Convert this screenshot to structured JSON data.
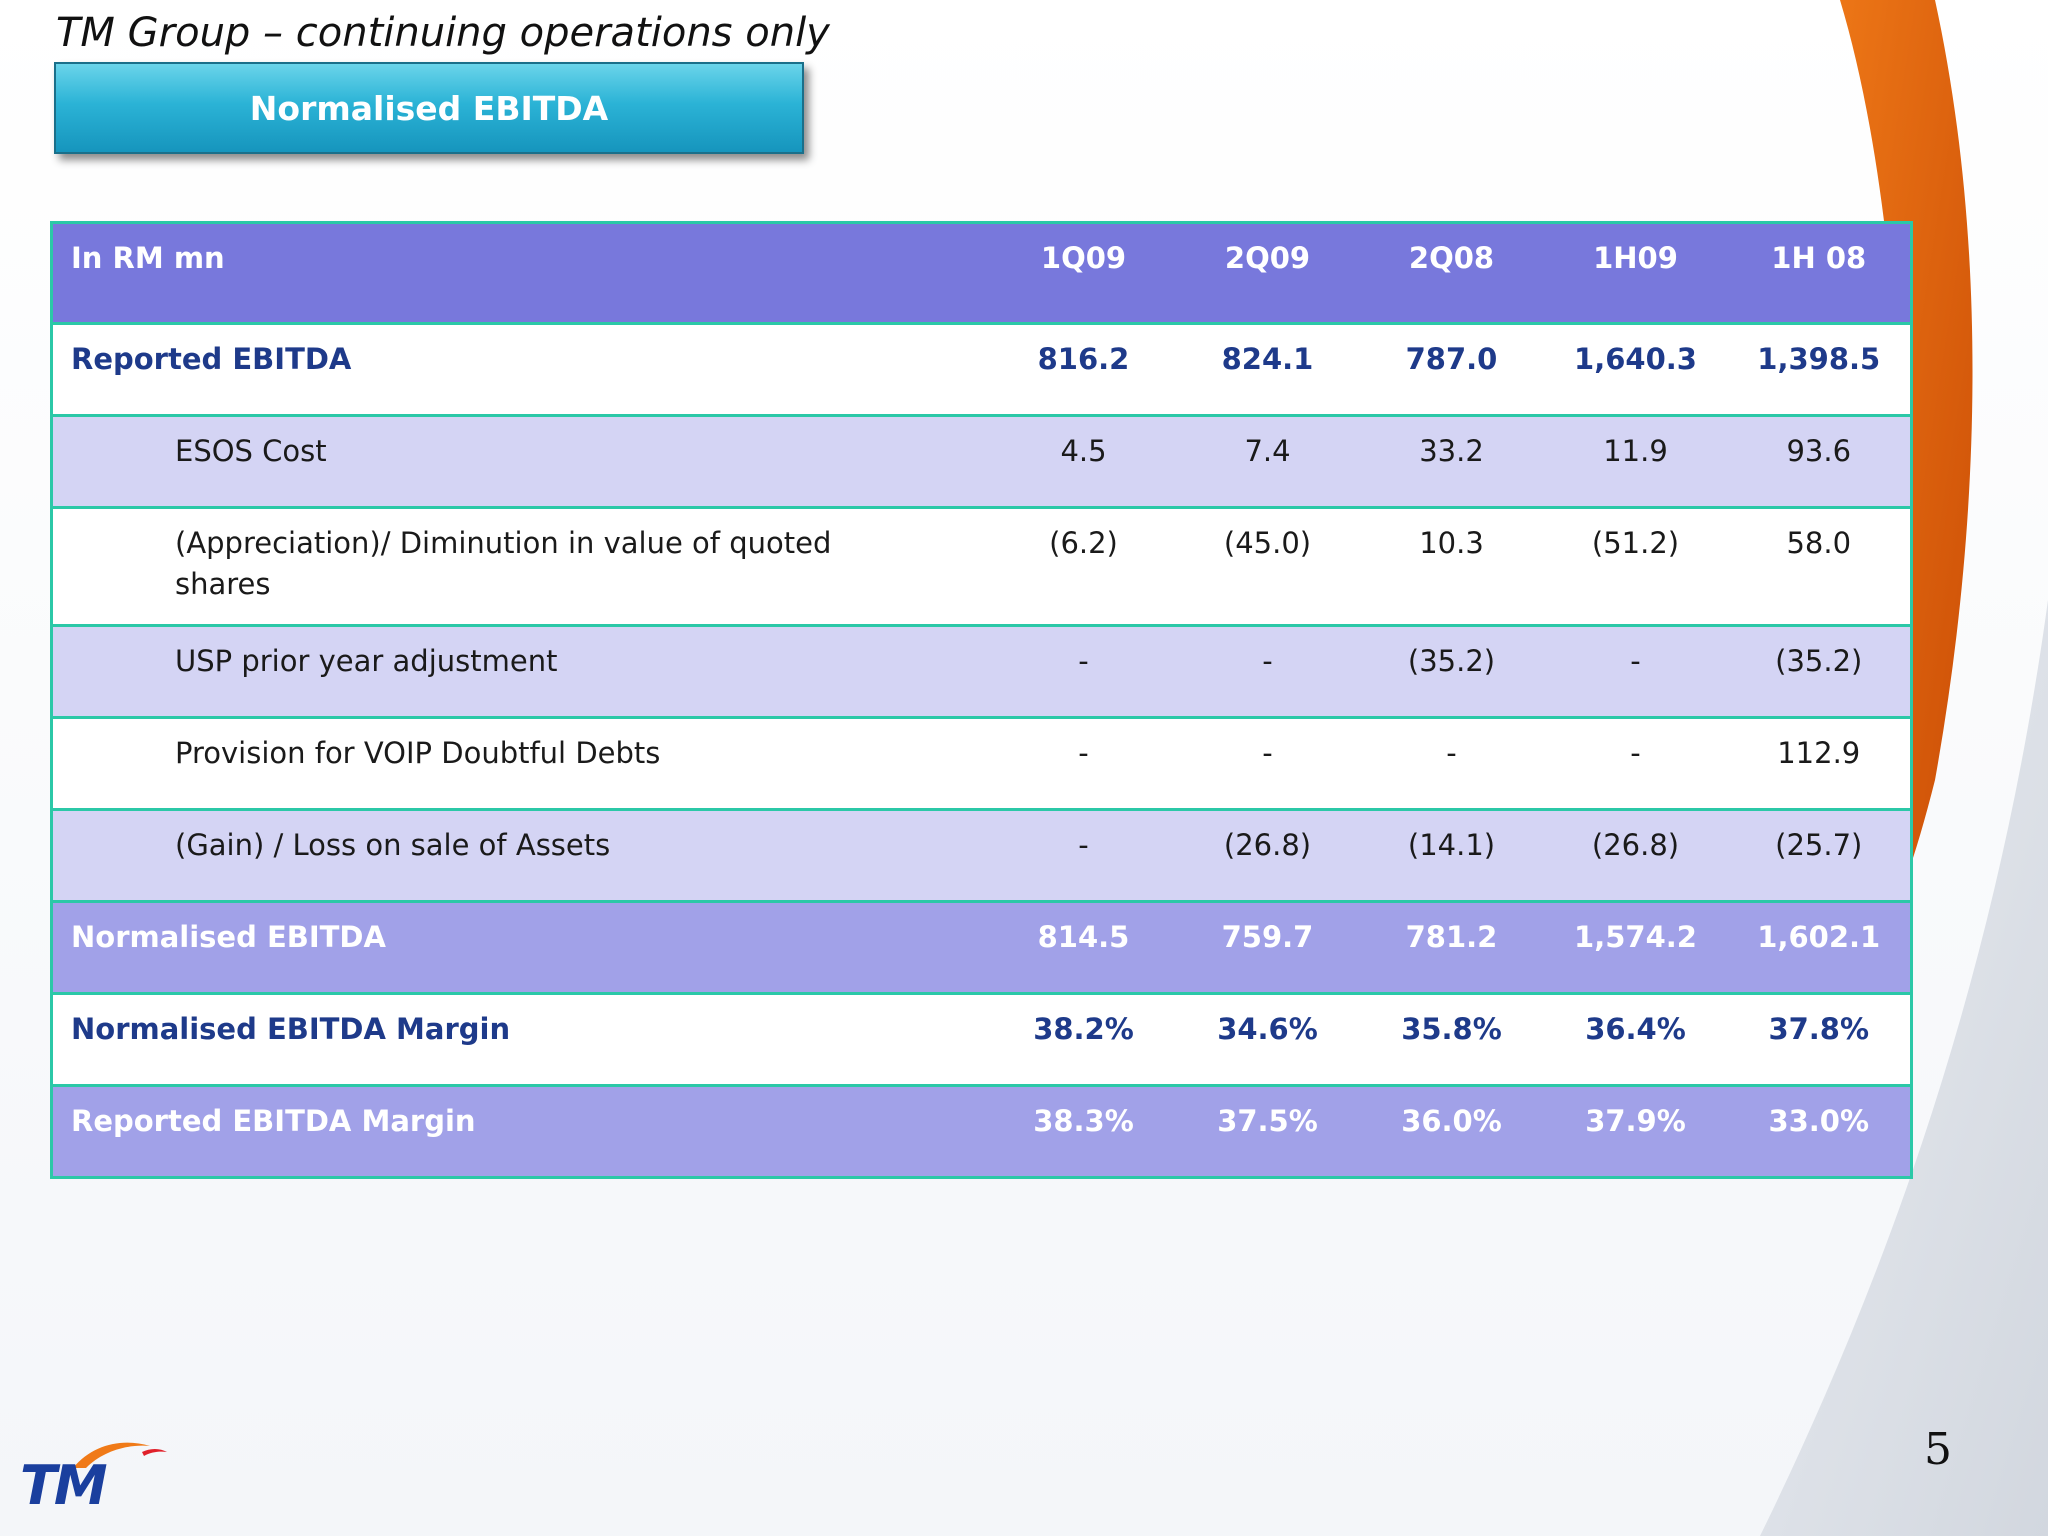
{
  "slide": {
    "title": "TM Group – continuing operations only",
    "section_badge": "Normalised EBITDA",
    "page_number": "5"
  },
  "logo": {
    "text": "TM",
    "name": "tm-logo-icon"
  },
  "colors": {
    "header_row": "#7878dc",
    "summary_row": "#a1a1e8",
    "alt_row": "#d4d4f4",
    "highlight_text": "#1e3a8a",
    "border": "#2bc8a7",
    "badge": "#2bb3d6",
    "swoosh_orange": "#e05a0a"
  },
  "table": {
    "header": {
      "label": "In  RM  mn",
      "periods": [
        "1Q09",
        "2Q09",
        "2Q08",
        "1H09",
        "1H 08"
      ]
    },
    "rows": [
      {
        "label": "Reported EBITDA",
        "values": [
          "816.2",
          "824.1",
          "787.0",
          "1,640.3",
          "1,398.5"
        ]
      },
      {
        "label": "ESOS Cost",
        "values": [
          "4.5",
          "7.4",
          "33.2",
          "11.9",
          "93.6"
        ]
      },
      {
        "label": "(Appreciation)/ Diminution in value of   quoted shares",
        "values": [
          "(6.2)",
          "(45.0)",
          "10.3",
          "(51.2)",
          "58.0"
        ]
      },
      {
        "label": "USP prior year adjustment",
        "values": [
          "-",
          "-",
          "(35.2)",
          "-",
          "(35.2)"
        ]
      },
      {
        "label": "Provision for VOIP Doubtful Debts",
        "values": [
          "-",
          "-",
          "-",
          "-",
          "112.9"
        ]
      },
      {
        "label": "(Gain) / Loss on sale of Assets",
        "values": [
          "-",
          "(26.8)",
          "(14.1)",
          "(26.8)",
          "(25.7)"
        ]
      },
      {
        "label": "Normalised EBITDA",
        "values": [
          "814.5",
          "759.7",
          "781.2",
          "1,574.2",
          "1,602.1"
        ]
      },
      {
        "label": "Normalised EBITDA Margin",
        "values": [
          "38.2%",
          "34.6%",
          "35.8%",
          "36.4%",
          "37.8%"
        ]
      },
      {
        "label": "Reported EBITDA Margin",
        "values": [
          "38.3%",
          "37.5%",
          "36.0%",
          "37.9%",
          "33.0%"
        ]
      }
    ]
  }
}
